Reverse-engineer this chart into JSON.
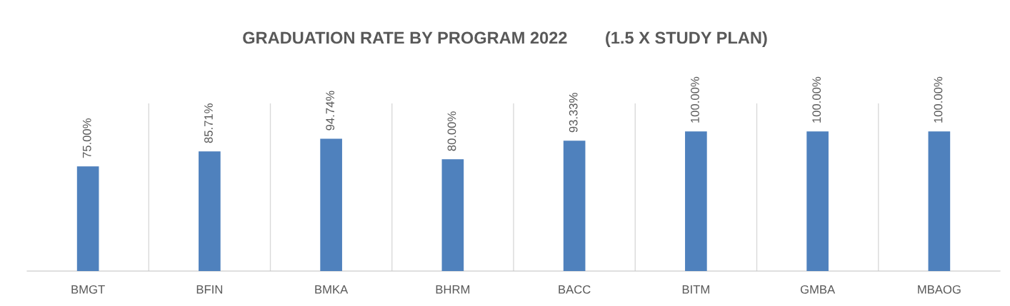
{
  "chart_data": {
    "type": "bar",
    "title": "GRADUATION RATE BY PROGRAM 2022        (1.5 X STUDY PLAN)",
    "categories": [
      "BMGT",
      "BFIN",
      "BMKA",
      "BHRM",
      "BACC",
      "BITM",
      "GMBA",
      "MBAOG"
    ],
    "values": [
      75.0,
      85.71,
      94.74,
      80.0,
      93.33,
      100.0,
      100.0,
      100.0
    ],
    "value_labels": [
      "75.00%",
      "85.71%",
      "94.74%",
      "80.00%",
      "93.33%",
      "100.00%",
      "100.00%",
      "100.00%"
    ],
    "color": "#4f81bd",
    "ylim": [
      0,
      120
    ],
    "grid": "x",
    "tick_labels": "x"
  }
}
